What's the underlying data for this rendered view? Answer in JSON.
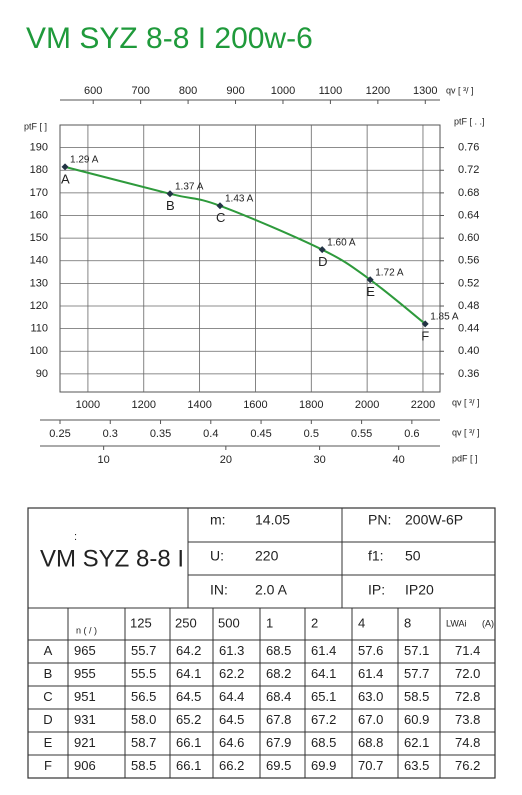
{
  "title": "VM SYZ 8-8 I 200w-6",
  "chart_data": {
    "type": "line",
    "x_label": "qv [  ³/  ]",
    "xlim": [
      900,
      2261
    ],
    "xticks": [
      1000,
      1200,
      1400,
      1600,
      1800,
      2000,
      2200
    ],
    "y_label": "ptF [   ]",
    "ylim": [
      82,
      200
    ],
    "yticks": [
      90,
      100,
      110,
      120,
      130,
      140,
      150,
      160,
      170,
      180,
      190
    ],
    "y2_label": "ptF [   . .]",
    "y2lim": [
      0.328,
      0.8
    ],
    "y2ticks": [
      0.36,
      {
        "value": 0.4,
        "label": "0.40"
      },
      0.44,
      0.48,
      0.52,
      0.56,
      {
        "value": 0.6,
        "label": "0.60"
      },
      0.64,
      0.68,
      0.72,
      0.76
    ],
    "top_axis": {
      "label": "qv [  ³/  ]",
      "xlim": [
        530,
        1331
      ],
      "xticks": [
        600,
        700,
        800,
        900,
        1000,
        1100,
        1200,
        1300
      ],
      "scale": "linear"
    },
    "extra_axes": [
      {
        "label": "qv [  ³/  ]",
        "xlim": [
          0.25,
          0.628
        ],
        "xticks": [
          0.25,
          0.3,
          0.35,
          0.4,
          0.45,
          0.5,
          0.55,
          0.6
        ],
        "scale": "linear"
      },
      {
        "label": "pdF [   ]",
        "xlim": [
          7.26,
          45.8
        ],
        "xticks": [
          10,
          20,
          30,
          40
        ],
        "scale": "sqrt"
      }
    ],
    "grid": true,
    "series": [
      {
        "color": "#2e9a3c",
        "x": [
          918,
          1294,
          1473,
          1839,
          2011,
          2208
        ],
        "values": [
          181.5,
          169.6,
          164.3,
          144.9,
          131.6,
          112.1
        ],
        "point_labels": [
          "A",
          "B",
          "C",
          "D",
          "E",
          "F"
        ],
        "annotations": [
          "1.29 A",
          "1.37 A",
          "1.43 A",
          "1.60 A",
          "1.72 A",
          "1.85 A"
        ]
      }
    ]
  },
  "table": {
    "model": "VM SYZ 8-8 I",
    "colon": ":",
    "specs": [
      {
        "label": "m:",
        "value": "14.05"
      },
      {
        "label": "U:",
        "value": "220"
      },
      {
        "label": "IN:",
        "value": "2.0  A"
      },
      {
        "label": "PN:",
        "value": "200W-6P"
      },
      {
        "label": "f1:",
        "value": "50"
      },
      {
        "label": "IP:",
        "value": "IP20"
      }
    ],
    "header": [
      "n (  /  )",
      "125",
      "250",
      "500",
      "1",
      "2",
      "4",
      "8",
      "LWAi",
      "(A)"
    ],
    "rows": [
      [
        "A",
        "965",
        "55.7",
        "64.2",
        "61.3",
        "68.5",
        "61.4",
        "57.6",
        "57.1",
        "71.4"
      ],
      [
        "B",
        "955",
        "55.5",
        "64.1",
        "62.2",
        "68.2",
        "64.1",
        "61.4",
        "57.7",
        "72.0"
      ],
      [
        "C",
        "951",
        "56.5",
        "64.5",
        "64.4",
        "68.4",
        "65.1",
        "63.0",
        "58.5",
        "72.8"
      ],
      [
        "D",
        "931",
        "58.0",
        "65.2",
        "64.5",
        "67.8",
        "67.2",
        "67.0",
        "60.9",
        "73.8"
      ],
      [
        "E",
        "921",
        "58.7",
        "66.1",
        "64.6",
        "67.9",
        "68.5",
        "68.8",
        "62.1",
        "74.8"
      ],
      [
        "F",
        "906",
        "58.5",
        "66.1",
        "66.2",
        "69.5",
        "69.9",
        "70.7",
        "63.5",
        "76.2"
      ]
    ]
  }
}
